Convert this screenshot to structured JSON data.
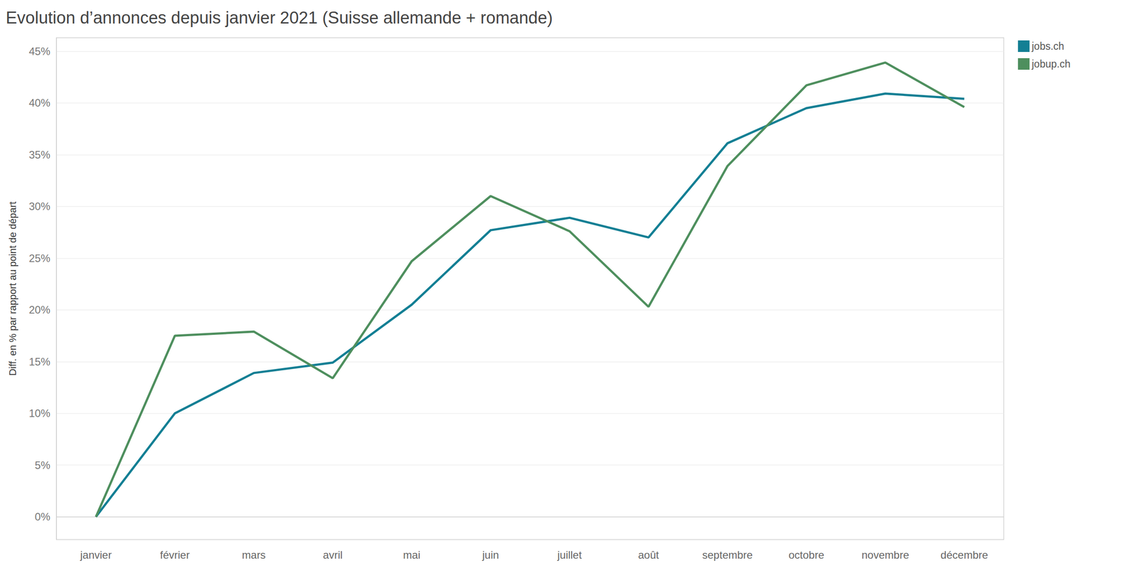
{
  "chart_data": {
    "type": "line",
    "title": "Evolution d’annonces depuis janvier 2021 (Suisse allemande + romande)",
    "y_label": "Diff. en % par rapport au point de départ",
    "categories": [
      "janvier",
      "février",
      "mars",
      "avril",
      "mai",
      "juin",
      "juillet",
      "août",
      "septembre",
      "octobre",
      "novembre",
      "décembre"
    ],
    "series": [
      {
        "name": "jobs.ch",
        "color": "#137f94",
        "values": [
          0,
          10.0,
          13.9,
          14.9,
          20.5,
          27.7,
          28.9,
          27.0,
          36.1,
          39.5,
          40.9,
          40.4
        ]
      },
      {
        "name": "jobup.ch",
        "color": "#4e8f5e",
        "values": [
          0,
          17.5,
          17.9,
          13.4,
          24.7,
          31.0,
          27.6,
          20.3,
          33.9,
          41.7,
          43.9,
          39.6
        ]
      }
    ],
    "ylim": [
      -2.2,
      46.3
    ],
    "yticks": [
      {
        "value": 0,
        "label": "0%"
      },
      {
        "value": 5,
        "label": "5%"
      },
      {
        "value": 10,
        "label": "10%"
      },
      {
        "value": 15,
        "label": "15%"
      },
      {
        "value": 20,
        "label": "20%"
      },
      {
        "value": 25,
        "label": "25%"
      },
      {
        "value": 30,
        "label": "30%"
      },
      {
        "value": 35,
        "label": "35%"
      },
      {
        "value": 40,
        "label": "40%"
      },
      {
        "value": 45,
        "label": "45%"
      }
    ],
    "grid": true,
    "legend": "top-right"
  }
}
